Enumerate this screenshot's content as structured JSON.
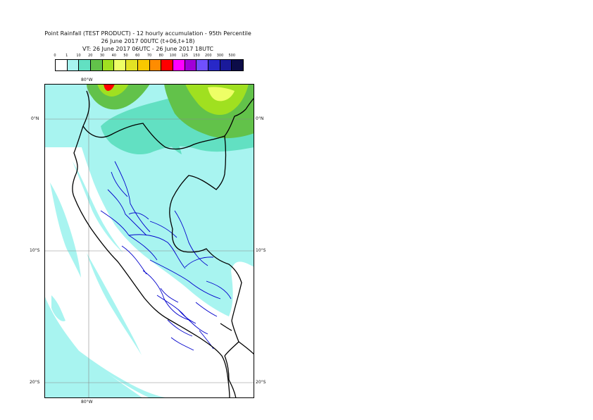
{
  "title": {
    "line1": "Point Rainfall (TEST PRODUCT) - 12 hourly accumulation - 95th Percentile",
    "line2": "26 June 2017 00UTC (t+06,t+18)",
    "line3": "VT: 26 June 2017 06UTC - 26 June 2017 18UTC"
  },
  "legend": {
    "thresholds": [
      "0",
      "1",
      "10",
      "20",
      "30",
      "40",
      "50",
      "60",
      "70",
      "80",
      "100",
      "125",
      "150",
      "200",
      "300",
      "500"
    ],
    "colors": [
      "#ffffff",
      "#a8f4f0",
      "#62e0c2",
      "#62c24a",
      "#a0e020",
      "#eeff66",
      "#e2e224",
      "#f8c800",
      "#ff8c00",
      "#ff0000",
      "#ff00ff",
      "#a000d8",
      "#7050ff",
      "#2828c8",
      "#1a1a9a",
      "#0c0c48"
    ]
  },
  "map": {
    "lon_label_top": "80°W",
    "lon_label_bottom": "80°W",
    "lat_labels_left": [
      "0°N",
      "10°S",
      "20°S"
    ],
    "lat_labels_right": [
      "0°N",
      "10°S",
      "20°S"
    ],
    "colors": {
      "sea": "#ffffff",
      "rain_light": "#a8f4f0",
      "rain_10": "#62e0c2",
      "rain_20": "#62c24a",
      "rain_30": "#a0e020",
      "rain_40": "#eeff66",
      "rain_50": "#e2e224",
      "rain_heavy": "#ff0000",
      "coast": "#000000",
      "admin": "#0000cc",
      "grid": "#888888"
    }
  }
}
